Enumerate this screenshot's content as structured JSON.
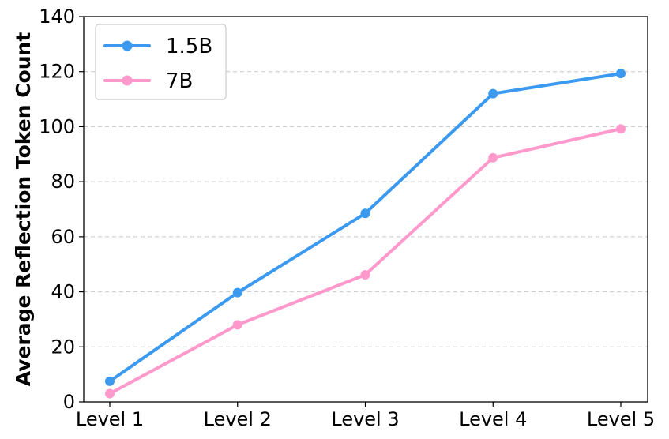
{
  "chart_data": {
    "type": "line",
    "title": "",
    "xlabel": "",
    "ylabel": "Average Reflection Token Count",
    "categories": [
      "Level 1",
      "Level 2",
      "Level 3",
      "Level 4",
      "Level 5"
    ],
    "ylim": [
      0,
      140
    ],
    "yticks": [
      0,
      20,
      40,
      60,
      80,
      100,
      120,
      140
    ],
    "grid": "horizontal dashed",
    "legend_position": "top-left",
    "series": [
      {
        "name": "1.5B",
        "color": "#3b99f0",
        "values": [
          7.5,
          39.7,
          68.5,
          112,
          119.3
        ]
      },
      {
        "name": "7B",
        "color": "#ff99cc",
        "values": [
          3,
          28,
          46.2,
          88.7,
          99.2
        ]
      }
    ]
  }
}
